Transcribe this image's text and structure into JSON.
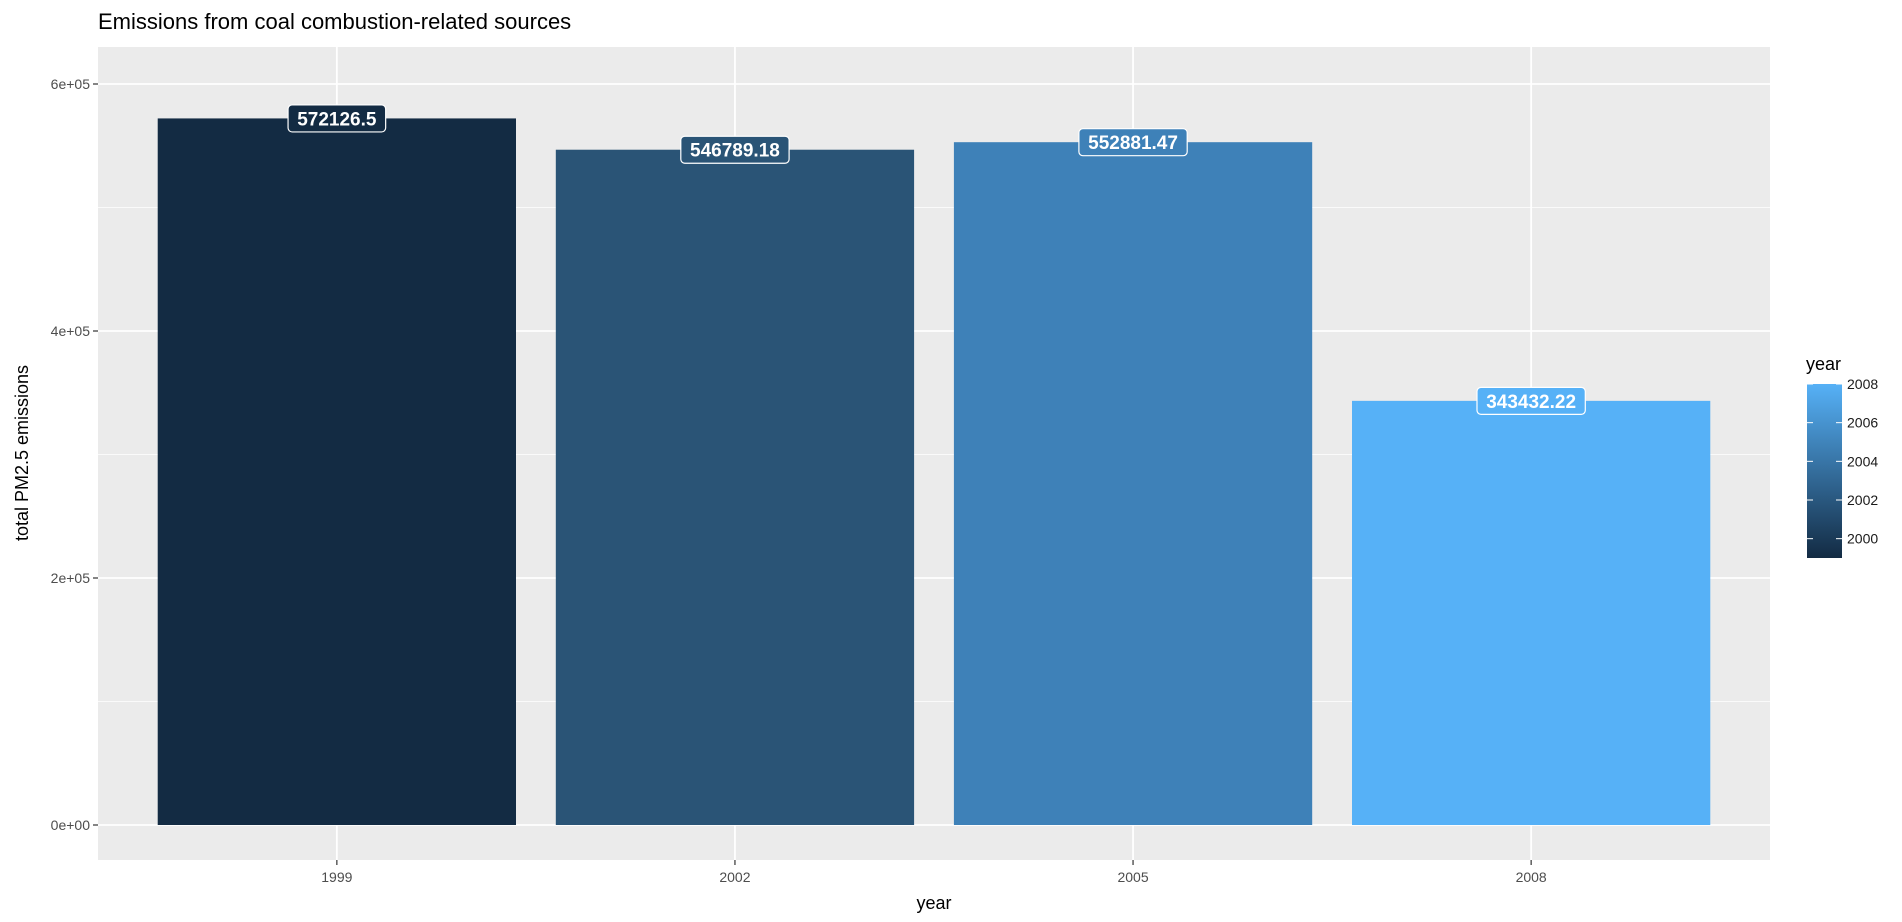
{
  "chart_data": {
    "type": "bar",
    "title": "Emissions from coal combustion-related sources",
    "xlabel": "year",
    "ylabel": "total PM2.5 emissions",
    "categories": [
      "1999",
      "2002",
      "2005",
      "2008"
    ],
    "values": [
      572126.5,
      546789.18,
      552881.47,
      343432.22
    ],
    "value_labels": [
      "572126.5",
      "546789.18",
      "552881.47",
      "343432.22"
    ],
    "ylim": [
      -30000,
      600000
    ],
    "yticks": [
      0,
      200000,
      400000,
      600000
    ],
    "ytick_labels": [
      "0e+00",
      "2e+05",
      "4e+05",
      "6e+05"
    ],
    "grid": true,
    "fill_by": "year",
    "fill_colors": [
      "#132B43",
      "#2A5476",
      "#3E81B8",
      "#56B1F7"
    ],
    "legend": {
      "title": "year",
      "position": "right",
      "type": "colorbar",
      "range": [
        1999,
        2008
      ],
      "low_color": "#132B43",
      "high_color": "#56B1F7",
      "breaks": [
        2000,
        2002,
        2004,
        2006,
        2008
      ],
      "break_labels": [
        "2000",
        "2002",
        "2004",
        "2006",
        "2008"
      ]
    },
    "panel_background": "#EBEBEB",
    "grid_color": "#FFFFFF"
  }
}
